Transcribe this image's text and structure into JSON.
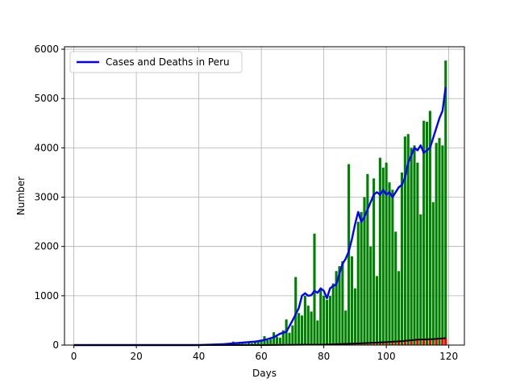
{
  "chart_data": {
    "type": "bar",
    "xlabel": "Days",
    "ylabel": "Number",
    "xlim": [
      -3,
      125
    ],
    "ylim": [
      0,
      6050
    ],
    "xticks": [
      0,
      20,
      40,
      60,
      80,
      100,
      120
    ],
    "yticks": [
      0,
      1000,
      2000,
      3000,
      4000,
      5000,
      6000
    ],
    "grid": true,
    "legend": {
      "position": "top-left",
      "entries": [
        "Cases and Deaths in Peru"
      ]
    },
    "colors": {
      "cases_bars": "#008000",
      "deaths_bars": "#ff0000",
      "line": "#0000ff",
      "deaths_line": "#000000"
    },
    "series": [
      {
        "type": "bar",
        "x": [
          45,
          46,
          47,
          48,
          49,
          50,
          51,
          52,
          53,
          54,
          55,
          56,
          57,
          58,
          59,
          60,
          61,
          62,
          63,
          64,
          65,
          66,
          67,
          68,
          69,
          70,
          71,
          72,
          73,
          74,
          75,
          76,
          77,
          78,
          79,
          80,
          81,
          82,
          83,
          84,
          85,
          86,
          87,
          88,
          89,
          90,
          91,
          92,
          93,
          94,
          95,
          96,
          97,
          98,
          99,
          100,
          101,
          102,
          103,
          104,
          105,
          106,
          107,
          108,
          109,
          110,
          111,
          112,
          113,
          114,
          115,
          116,
          117,
          118,
          119
        ],
        "values": [
          5,
          10,
          15,
          20,
          25,
          40,
          70,
          45,
          60,
          50,
          30,
          55,
          40,
          70,
          90,
          110,
          180,
          100,
          120,
          260,
          170,
          150,
          300,
          520,
          250,
          400,
          1380,
          650,
          600,
          1000,
          800,
          680,
          2260,
          500,
          1150,
          1000,
          920,
          1000,
          1250,
          1500,
          1600,
          1700,
          700,
          3670,
          1800,
          1150,
          2500,
          2700,
          3000,
          3470,
          2000,
          3380,
          1400,
          3800,
          3600,
          3700,
          3300,
          3150,
          2300,
          1500,
          3500,
          4230,
          4280,
          4000,
          4050,
          3700,
          2650,
          4550,
          4530,
          4750,
          2900,
          4100,
          4200,
          4050,
          5770
        ]
      },
      {
        "type": "bar",
        "x": [
          80,
          82,
          84,
          86,
          88,
          90,
          92,
          94,
          96,
          98,
          100,
          102,
          104,
          106,
          108,
          110,
          112,
          114,
          116,
          118,
          119
        ],
        "values": [
          8,
          12,
          18,
          22,
          28,
          35,
          42,
          48,
          55,
          62,
          70,
          75,
          82,
          90,
          98,
          105,
          110,
          118,
          125,
          130,
          135
        ]
      },
      {
        "type": "line",
        "x": [
          0,
          40,
          44,
          48,
          50,
          52,
          54,
          56,
          58,
          60,
          62,
          64,
          66,
          68,
          70,
          72,
          73,
          74,
          75,
          76,
          77,
          78,
          79,
          80,
          81,
          82,
          83,
          84,
          85,
          86,
          87,
          88,
          89,
          90,
          91,
          92,
          93,
          94,
          95,
          96,
          97,
          98,
          99,
          100,
          101,
          102,
          103,
          104,
          105,
          106,
          107,
          108,
          109,
          110,
          111,
          112,
          113,
          114,
          115,
          116,
          117,
          118,
          119
        ],
        "values": [
          0,
          0,
          10,
          20,
          30,
          40,
          50,
          60,
          70,
          90,
          120,
          160,
          230,
          270,
          500,
          750,
          1000,
          1050,
          1000,
          1010,
          1100,
          1060,
          1150,
          1100,
          950,
          1150,
          1200,
          1230,
          1450,
          1650,
          1750,
          1900,
          2150,
          2450,
          2700,
          2500,
          2600,
          2750,
          2900,
          3050,
          3100,
          3050,
          3150,
          3050,
          3100,
          3000,
          3100,
          3200,
          3250,
          3400,
          3700,
          3850,
          4000,
          3950,
          4050,
          3900,
          3950,
          4000,
          4200,
          4400,
          4600,
          4750,
          5230
        ]
      },
      {
        "type": "line",
        "x": [
          0,
          60,
          80,
          90,
          100,
          105,
          110,
          115,
          119
        ],
        "values": [
          0,
          0,
          10,
          30,
          60,
          80,
          110,
          120,
          140
        ]
      }
    ]
  }
}
